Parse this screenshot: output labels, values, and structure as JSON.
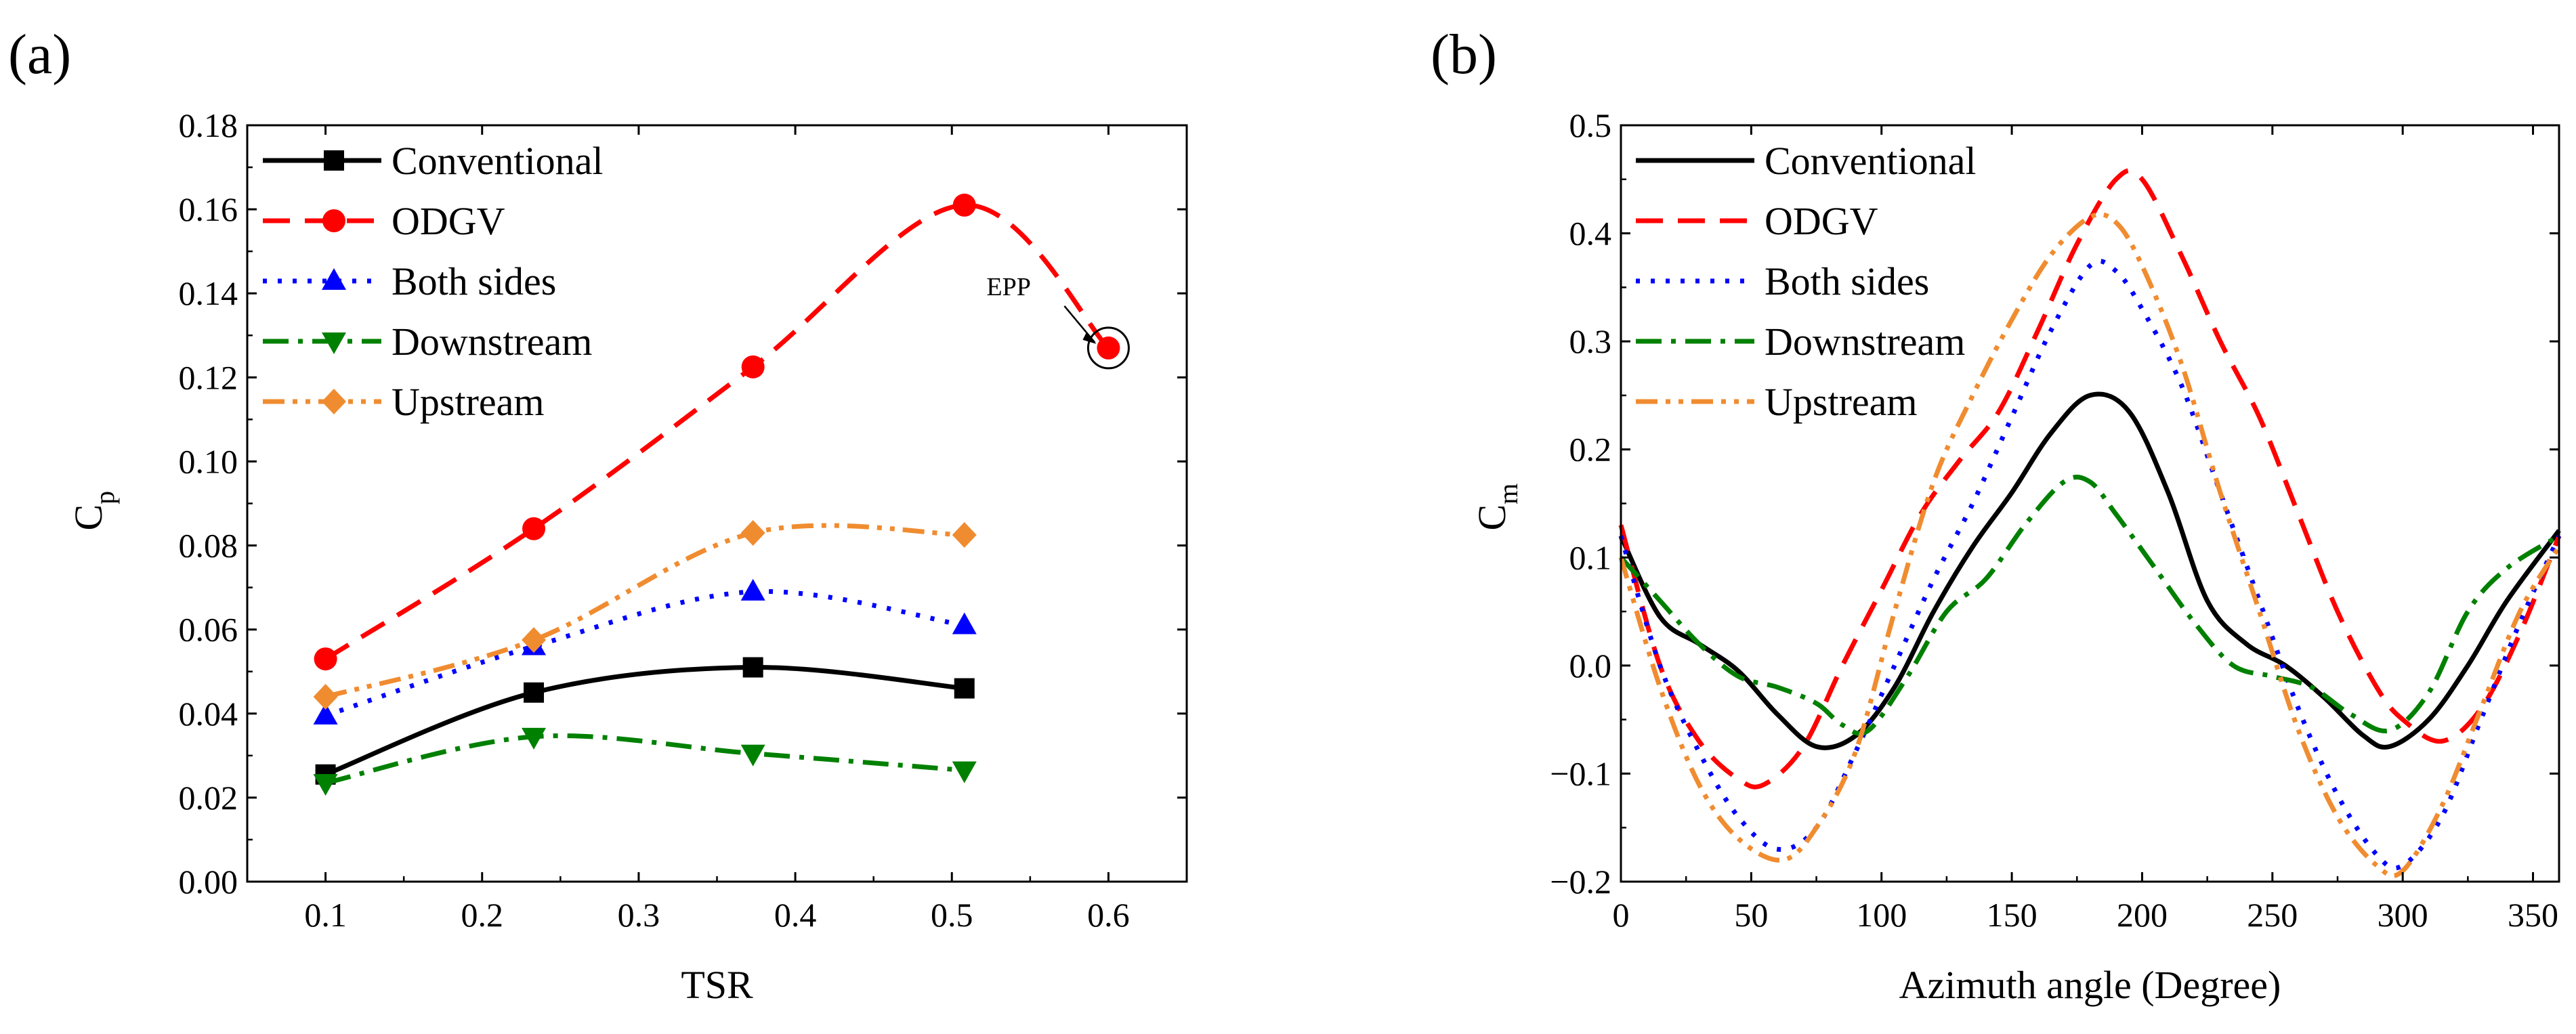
{
  "figure": {
    "panel_labels": [
      "(a)",
      "(b)"
    ]
  },
  "chart_data": [
    {
      "type": "line",
      "panel": "(a)",
      "xlabel": "TSR",
      "ylabel_main": "C",
      "ylabel_sub": "p",
      "xlim": [
        0.05,
        0.65
      ],
      "ylim": [
        0.0,
        0.18
      ],
      "xticks": [
        0.1,
        0.2,
        0.3,
        0.4,
        0.5,
        0.6
      ],
      "xtick_labels": [
        "0.1",
        "0.2",
        "0.3",
        "0.4",
        "0.5",
        "0.6"
      ],
      "yticks": [
        0.0,
        0.02,
        0.04,
        0.06,
        0.08,
        0.1,
        0.12,
        0.14,
        0.16,
        0.18
      ],
      "ytick_labels": [
        "0.00",
        "0.02",
        "0.04",
        "0.06",
        "0.08",
        "0.10",
        "0.12",
        "0.14",
        "0.16",
        "0.18"
      ],
      "legend_position": "top-left",
      "annotation": {
        "text": "EPP",
        "x": 0.6,
        "y": 0.127
      },
      "series": [
        {
          "name": "Conventional",
          "color": "#000000",
          "dash": "solid",
          "marker": "square",
          "x": [
            0.1,
            0.233,
            0.373,
            0.508
          ],
          "y": [
            0.0255,
            0.045,
            0.051,
            0.046
          ]
        },
        {
          "name": "ODGV",
          "color": "#ff0000",
          "dash": "dash",
          "marker": "circle",
          "x": [
            0.1,
            0.233,
            0.373,
            0.508,
            0.6
          ],
          "y": [
            0.053,
            0.084,
            0.1225,
            0.161,
            0.127
          ]
        },
        {
          "name": "Both sides",
          "color": "#0000ff",
          "dash": "dot",
          "marker": "triangle-up",
          "x": [
            0.1,
            0.233,
            0.373,
            0.508
          ],
          "y": [
            0.0395,
            0.056,
            0.069,
            0.061
          ]
        },
        {
          "name": "Downstream",
          "color": "#008000",
          "dash": "dashdot",
          "marker": "triangle-down",
          "x": [
            0.1,
            0.233,
            0.373,
            0.508
          ],
          "y": [
            0.0235,
            0.0345,
            0.0305,
            0.0265
          ]
        },
        {
          "name": "Upstream",
          "color": "#f08c30",
          "dash": "dashdotdot",
          "marker": "diamond",
          "x": [
            0.1,
            0.233,
            0.373,
            0.508
          ],
          "y": [
            0.044,
            0.0575,
            0.083,
            0.0825
          ]
        }
      ]
    },
    {
      "type": "line",
      "panel": "(b)",
      "xlabel": "Azimuth angle (Degree)",
      "ylabel_main": "C",
      "ylabel_sub": "m",
      "xlim": [
        0,
        360
      ],
      "ylim": [
        -0.2,
        0.5
      ],
      "xticks": [
        0,
        50,
        100,
        150,
        200,
        250,
        300,
        350
      ],
      "xtick_labels": [
        "0",
        "50",
        "100",
        "150",
        "200",
        "250",
        "300",
        "350"
      ],
      "yticks": [
        -0.2,
        -0.1,
        0.0,
        0.1,
        0.2,
        0.3,
        0.4,
        0.5
      ],
      "ytick_labels": [
        "−0.2",
        "−0.1",
        "0.0",
        "0.1",
        "0.2",
        "0.3",
        "0.4",
        "0.5"
      ],
      "legend_position": "top-left",
      "series": [
        {
          "name": "Conventional",
          "color": "#000000",
          "dash": "solid",
          "x": [
            0,
            15,
            30,
            45,
            60,
            75,
            90,
            105,
            120,
            135,
            150,
            165,
            180,
            195,
            210,
            225,
            240,
            255,
            270,
            285,
            295,
            310,
            325,
            340,
            360
          ],
          "y": [
            0.12,
            0.045,
            0.02,
            -0.005,
            -0.045,
            -0.075,
            -0.065,
            -0.02,
            0.05,
            0.11,
            0.16,
            0.215,
            0.25,
            0.235,
            0.16,
            0.06,
            0.02,
            0.0,
            -0.03,
            -0.065,
            -0.075,
            -0.05,
            0.0,
            0.06,
            0.125
          ]
        },
        {
          "name": "ODGV",
          "color": "#ff0000",
          "dash": "dash",
          "x": [
            0,
            15,
            30,
            45,
            55,
            70,
            85,
            100,
            115,
            130,
            145,
            160,
            175,
            190,
            200,
            215,
            230,
            245,
            260,
            275,
            290,
            300,
            315,
            330,
            345,
            360
          ],
          "y": [
            0.13,
            0.0,
            -0.07,
            -0.105,
            -0.11,
            -0.075,
            0.0,
            0.07,
            0.14,
            0.19,
            0.235,
            0.31,
            0.39,
            0.45,
            0.45,
            0.38,
            0.3,
            0.23,
            0.14,
            0.05,
            -0.02,
            -0.05,
            -0.07,
            -0.04,
            0.03,
            0.12
          ]
        },
        {
          "name": "Both sides",
          "color": "#0000ff",
          "dash": "dot",
          "x": [
            0,
            15,
            30,
            45,
            60,
            75,
            90,
            105,
            120,
            135,
            150,
            165,
            180,
            190,
            200,
            215,
            230,
            245,
            260,
            275,
            290,
            300,
            315,
            330,
            345,
            360
          ],
          "y": [
            0.12,
            0.0,
            -0.08,
            -0.14,
            -0.17,
            -0.15,
            -0.08,
            0.0,
            0.08,
            0.15,
            0.23,
            0.31,
            0.37,
            0.365,
            0.33,
            0.26,
            0.16,
            0.06,
            -0.04,
            -0.12,
            -0.175,
            -0.185,
            -0.14,
            -0.05,
            0.04,
            0.12
          ]
        },
        {
          "name": "Downstream",
          "color": "#008000",
          "dash": "dashdot",
          "x": [
            0,
            15,
            30,
            45,
            60,
            75,
            85,
            95,
            110,
            125,
            140,
            155,
            170,
            180,
            190,
            205,
            220,
            235,
            250,
            265,
            280,
            295,
            310,
            325,
            340,
            360
          ],
          "y": [
            0.1,
            0.06,
            0.02,
            -0.01,
            -0.02,
            -0.035,
            -0.055,
            -0.06,
            -0.01,
            0.05,
            0.08,
            0.13,
            0.17,
            0.17,
            0.14,
            0.09,
            0.04,
            0.0,
            -0.01,
            -0.02,
            -0.045,
            -0.06,
            -0.025,
            0.05,
            0.09,
            0.12
          ]
        },
        {
          "name": "Upstream",
          "color": "#f08c30",
          "dash": "dashdotdot",
          "x": [
            0,
            15,
            30,
            45,
            62,
            75,
            90,
            105,
            120,
            135,
            150,
            165,
            180,
            190,
            200,
            215,
            230,
            245,
            260,
            275,
            290,
            300,
            315,
            330,
            345,
            360
          ],
          "y": [
            0.1,
            -0.02,
            -0.11,
            -0.16,
            -0.18,
            -0.15,
            -0.08,
            0.05,
            0.17,
            0.25,
            0.32,
            0.38,
            0.415,
            0.41,
            0.37,
            0.28,
            0.16,
            0.05,
            -0.06,
            -0.14,
            -0.185,
            -0.19,
            -0.13,
            -0.04,
            0.05,
            0.11
          ]
        }
      ]
    }
  ]
}
